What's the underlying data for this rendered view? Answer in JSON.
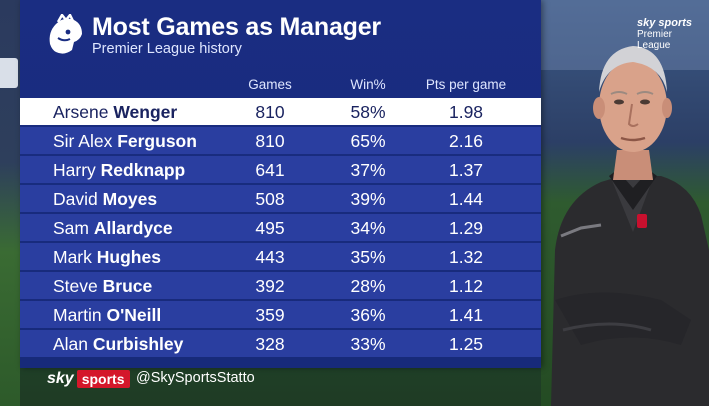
{
  "header": {
    "title": "Most Games as Manager",
    "subtitle": "Premier League history"
  },
  "columns": {
    "games": "Games",
    "win": "Win%",
    "pts": "Pts per game"
  },
  "rows": [
    {
      "first": "Arsene",
      "last": "Wenger",
      "games": "810",
      "win": "58%",
      "pts": "1.98"
    },
    {
      "first": "Sir Alex",
      "last": "Ferguson",
      "games": "810",
      "win": "65%",
      "pts": "2.16"
    },
    {
      "first": "Harry",
      "last": "Redknapp",
      "games": "641",
      "win": "37%",
      "pts": "1.37"
    },
    {
      "first": "David",
      "last": "Moyes",
      "games": "508",
      "win": "39%",
      "pts": "1.44"
    },
    {
      "first": "Sam",
      "last": "Allardyce",
      "games": "495",
      "win": "34%",
      "pts": "1.29"
    },
    {
      "first": "Mark",
      "last": "Hughes",
      "games": "443",
      "win": "35%",
      "pts": "1.32"
    },
    {
      "first": "Steve",
      "last": "Bruce",
      "games": "392",
      "win": "28%",
      "pts": "1.12"
    },
    {
      "first": "Martin",
      "last": "O'Neill",
      "games": "359",
      "win": "36%",
      "pts": "1.41"
    },
    {
      "first": "Alan",
      "last": "Curbishley",
      "games": "328",
      "win": "33%",
      "pts": "1.25"
    }
  ],
  "footer": {
    "sky": "sky",
    "sports": "sports",
    "handle": "@SkySportsStatto"
  },
  "badge": {
    "sky": "sky sports",
    "league": "Premier League"
  },
  "colors": {
    "panel": "#1a2d82",
    "row": "#2a3ea0",
    "highlight_row": "#ffffff",
    "sky_red": "#d4172a"
  }
}
